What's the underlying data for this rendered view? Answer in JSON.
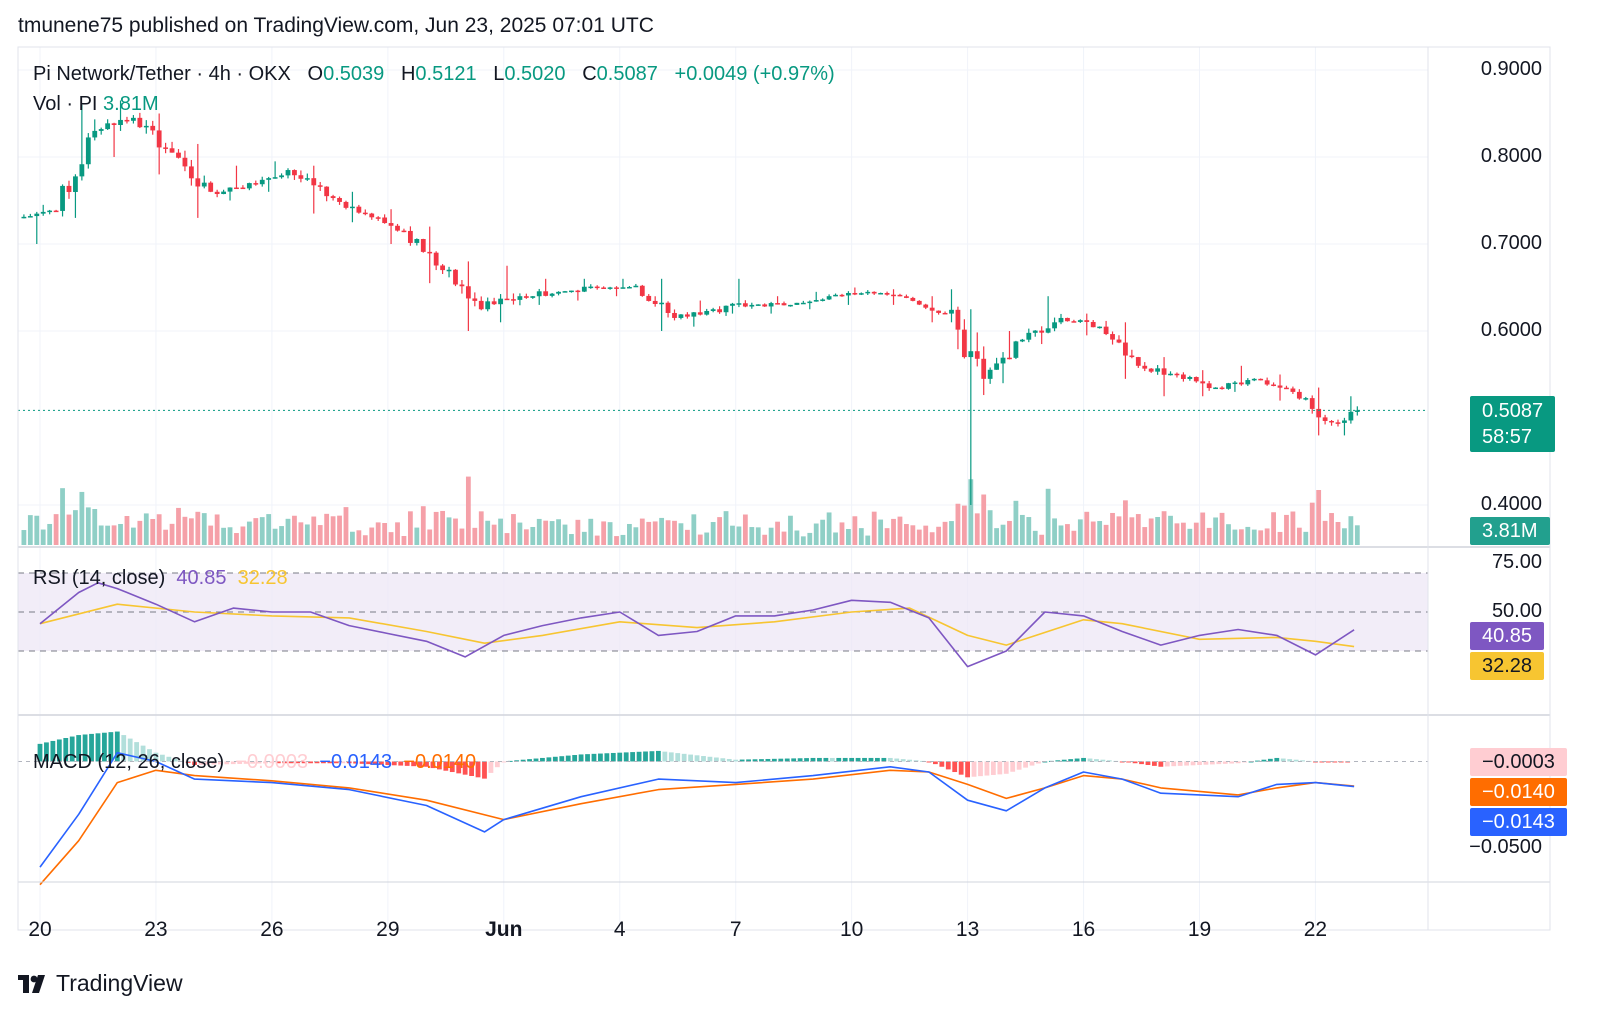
{
  "header": {
    "publisher": "tmunene75 published on TradingView.com, Jun 23, 2025 07:01 UTC",
    "symbol": "Pi Network/Tether · 4h · OKX",
    "open_label": "O",
    "open": "0.5039",
    "high_label": "H",
    "high": "0.5121",
    "low_label": "L",
    "low": "0.5020",
    "close_label": "C",
    "close": "0.5087",
    "change": "+0.0049 (+0.97%)",
    "vol_label": "Vol · PI",
    "vol_value": "3.81M"
  },
  "price_axis": {
    "ticks": [
      {
        "label": "0.9000",
        "value": 0.9
      },
      {
        "label": "0.8000",
        "value": 0.8
      },
      {
        "label": "0.7000",
        "value": 0.7
      },
      {
        "label": "0.6000",
        "value": 0.6
      },
      {
        "label": "0.4000",
        "value": 0.4
      }
    ],
    "last_price": "0.5087",
    "countdown": "58:57",
    "volume_badge": "3.81M"
  },
  "rsi": {
    "label": "RSI (14, close)",
    "value": "40.85",
    "ma_value": "32.28",
    "ticks": [
      {
        "label": "75.00",
        "value": 75
      },
      {
        "label": "50.00",
        "value": 50
      },
      {
        "label": "25.00",
        "value": 25
      }
    ],
    "band_upper": 70,
    "band_mid": 50,
    "band_lower": 30
  },
  "macd": {
    "label": "MACD (12, 26, close)",
    "hist_value": "−0.0003",
    "macd_value": "−0.0143",
    "signal_value": "−0.0140",
    "tick_label": "−0.0500"
  },
  "x_axis": {
    "labels": [
      {
        "text": "20",
        "day": 0
      },
      {
        "text": "23",
        "day": 3
      },
      {
        "text": "26",
        "day": 6
      },
      {
        "text": "29",
        "day": 9
      },
      {
        "text": "Jun",
        "day": 12
      },
      {
        "text": "4",
        "day": 15
      },
      {
        "text": "7",
        "day": 18
      },
      {
        "text": "10",
        "day": 21
      },
      {
        "text": "13",
        "day": 24
      },
      {
        "text": "16",
        "day": 27
      },
      {
        "text": "19",
        "day": 30
      },
      {
        "text": "22",
        "day": 33
      }
    ]
  },
  "footer": {
    "brand": "TradingView",
    "logo_icon": "tradingview-logo-icon"
  },
  "colors": {
    "up": "#089981",
    "down": "#f23645",
    "vol_up": "#8fcfc6",
    "vol_down": "#f5a0a8",
    "rsi": "#7e57c2",
    "rsi_ma": "#f7c531",
    "rsi_band": "#ede7f6",
    "macd": "#2962ff",
    "signal": "#ff6d00",
    "hist_up_strong": "#26a69a",
    "hist_up_weak": "#b2dfdb",
    "hist_down_strong": "#ff5252",
    "hist_down_weak": "#ffcdd2"
  },
  "chart_data": {
    "type": "candlestick",
    "title": "Pi Network/Tether · 4h · OKX",
    "x_unit": "days from May 20, 2025 (4h candles)",
    "ylim": [
      0.36,
      0.92
    ],
    "candles_daily_approx": [
      {
        "day": 0,
        "o": 0.73,
        "h": 0.745,
        "l": 0.7,
        "c": 0.738
      },
      {
        "day": 1,
        "o": 0.738,
        "h": 0.86,
        "l": 0.73,
        "c": 0.83
      },
      {
        "day": 2,
        "o": 0.83,
        "h": 0.865,
        "l": 0.8,
        "c": 0.845
      },
      {
        "day": 3,
        "o": 0.845,
        "h": 0.85,
        "l": 0.78,
        "c": 0.805
      },
      {
        "day": 4,
        "o": 0.805,
        "h": 0.815,
        "l": 0.73,
        "c": 0.76
      },
      {
        "day": 5,
        "o": 0.76,
        "h": 0.79,
        "l": 0.75,
        "c": 0.77
      },
      {
        "day": 6,
        "o": 0.77,
        "h": 0.795,
        "l": 0.76,
        "c": 0.785
      },
      {
        "day": 7,
        "o": 0.785,
        "h": 0.79,
        "l": 0.735,
        "c": 0.755
      },
      {
        "day": 8,
        "o": 0.755,
        "h": 0.76,
        "l": 0.725,
        "c": 0.735
      },
      {
        "day": 9,
        "o": 0.735,
        "h": 0.74,
        "l": 0.7,
        "c": 0.715
      },
      {
        "day": 10,
        "o": 0.715,
        "h": 0.72,
        "l": 0.655,
        "c": 0.67
      },
      {
        "day": 11,
        "o": 0.67,
        "h": 0.68,
        "l": 0.6,
        "c": 0.625
      },
      {
        "day": 12,
        "o": 0.625,
        "h": 0.675,
        "l": 0.61,
        "c": 0.64
      },
      {
        "day": 13,
        "o": 0.64,
        "h": 0.66,
        "l": 0.63,
        "c": 0.645
      },
      {
        "day": 14,
        "o": 0.645,
        "h": 0.66,
        "l": 0.635,
        "c": 0.65
      },
      {
        "day": 15,
        "o": 0.65,
        "h": 0.66,
        "l": 0.64,
        "c": 0.652
      },
      {
        "day": 16,
        "o": 0.652,
        "h": 0.66,
        "l": 0.6,
        "c": 0.615
      },
      {
        "day": 17,
        "o": 0.615,
        "h": 0.635,
        "l": 0.605,
        "c": 0.625
      },
      {
        "day": 18,
        "o": 0.625,
        "h": 0.66,
        "l": 0.62,
        "c": 0.63
      },
      {
        "day": 19,
        "o": 0.63,
        "h": 0.64,
        "l": 0.62,
        "c": 0.63
      },
      {
        "day": 20,
        "o": 0.63,
        "h": 0.645,
        "l": 0.625,
        "c": 0.64
      },
      {
        "day": 21,
        "o": 0.64,
        "h": 0.65,
        "l": 0.63,
        "c": 0.645
      },
      {
        "day": 22,
        "o": 0.645,
        "h": 0.648,
        "l": 0.63,
        "c": 0.638
      },
      {
        "day": 23,
        "o": 0.638,
        "h": 0.64,
        "l": 0.61,
        "c": 0.62
      },
      {
        "day": 24,
        "o": 0.62,
        "h": 0.625,
        "l": 0.4,
        "c": 0.545
      },
      {
        "day": 25,
        "o": 0.545,
        "h": 0.6,
        "l": 0.54,
        "c": 0.59
      },
      {
        "day": 26,
        "o": 0.59,
        "h": 0.64,
        "l": 0.585,
        "c": 0.615
      },
      {
        "day": 27,
        "o": 0.615,
        "h": 0.62,
        "l": 0.595,
        "c": 0.605
      },
      {
        "day": 28,
        "o": 0.605,
        "h": 0.61,
        "l": 0.545,
        "c": 0.56
      },
      {
        "day": 29,
        "o": 0.56,
        "h": 0.57,
        "l": 0.525,
        "c": 0.55
      },
      {
        "day": 30,
        "o": 0.55,
        "h": 0.555,
        "l": 0.525,
        "c": 0.535
      },
      {
        "day": 31,
        "o": 0.535,
        "h": 0.56,
        "l": 0.53,
        "c": 0.545
      },
      {
        "day": 32,
        "o": 0.545,
        "h": 0.55,
        "l": 0.52,
        "c": 0.53
      },
      {
        "day": 33,
        "o": 0.53,
        "h": 0.535,
        "l": 0.48,
        "c": 0.495
      },
      {
        "day": 34,
        "o": 0.495,
        "h": 0.525,
        "l": 0.48,
        "c": 0.5087
      }
    ],
    "volume": {
      "last": "3.81M",
      "peak_days": [
        1,
        11,
        24,
        26,
        33
      ]
    },
    "rsi_points": [
      [
        0,
        44
      ],
      [
        1,
        60
      ],
      [
        1.5,
        65
      ],
      [
        2,
        62
      ],
      [
        3,
        54
      ],
      [
        4,
        45
      ],
      [
        5,
        52
      ],
      [
        6,
        50
      ],
      [
        7,
        50
      ],
      [
        8,
        43
      ],
      [
        9,
        39
      ],
      [
        10,
        35
      ],
      [
        11,
        27
      ],
      [
        12,
        38
      ],
      [
        13,
        43
      ],
      [
        14,
        47
      ],
      [
        15,
        50
      ],
      [
        16,
        38
      ],
      [
        17,
        40
      ],
      [
        18,
        48
      ],
      [
        19,
        48
      ],
      [
        20,
        51
      ],
      [
        21,
        56
      ],
      [
        22,
        55
      ],
      [
        23,
        47
      ],
      [
        24,
        22
      ],
      [
        25,
        30
      ],
      [
        26,
        50
      ],
      [
        27,
        48
      ],
      [
        28,
        40
      ],
      [
        29,
        33
      ],
      [
        30,
        38
      ],
      [
        31,
        41
      ],
      [
        32,
        38
      ],
      [
        33,
        28
      ],
      [
        34,
        40.85
      ]
    ],
    "rsi_ma_points": [
      [
        0,
        44
      ],
      [
        2,
        54
      ],
      [
        4,
        50
      ],
      [
        6,
        48
      ],
      [
        8,
        47
      ],
      [
        10,
        40
      ],
      [
        11.5,
        34
      ],
      [
        13,
        38
      ],
      [
        15,
        45
      ],
      [
        17,
        42
      ],
      [
        19,
        45
      ],
      [
        21,
        50
      ],
      [
        22.5,
        52
      ],
      [
        24,
        38
      ],
      [
        25,
        33
      ],
      [
        27,
        46
      ],
      [
        28,
        44
      ],
      [
        30,
        36
      ],
      [
        32,
        37
      ],
      [
        33,
        35
      ],
      [
        34,
        32.28
      ]
    ],
    "macd_points": [
      [
        0,
        -0.06
      ],
      [
        1,
        -0.03
      ],
      [
        2,
        0.005
      ],
      [
        3,
        0.0
      ],
      [
        4,
        -0.01
      ],
      [
        6,
        -0.012
      ],
      [
        8,
        -0.016
      ],
      [
        10,
        -0.025
      ],
      [
        11.5,
        -0.04
      ],
      [
        12,
        -0.033
      ],
      [
        14,
        -0.02
      ],
      [
        16,
        -0.01
      ],
      [
        18,
        -0.012
      ],
      [
        20,
        -0.008
      ],
      [
        22,
        -0.003
      ],
      [
        23,
        -0.006
      ],
      [
        24,
        -0.022
      ],
      [
        25,
        -0.028
      ],
      [
        26,
        -0.015
      ],
      [
        27,
        -0.006
      ],
      [
        28,
        -0.01
      ],
      [
        29,
        -0.018
      ],
      [
        31,
        -0.02
      ],
      [
        32,
        -0.013
      ],
      [
        33,
        -0.012
      ],
      [
        34,
        -0.0143
      ]
    ],
    "signal_points": [
      [
        0,
        -0.07
      ],
      [
        1,
        -0.045
      ],
      [
        2,
        -0.012
      ],
      [
        3,
        -0.005
      ],
      [
        4,
        -0.008
      ],
      [
        6,
        -0.011
      ],
      [
        8,
        -0.015
      ],
      [
        10,
        -0.022
      ],
      [
        12,
        -0.033
      ],
      [
        14,
        -0.024
      ],
      [
        16,
        -0.016
      ],
      [
        18,
        -0.013
      ],
      [
        20,
        -0.01
      ],
      [
        22,
        -0.005
      ],
      [
        23,
        -0.006
      ],
      [
        24,
        -0.013
      ],
      [
        25,
        -0.021
      ],
      [
        26,
        -0.015
      ],
      [
        27,
        -0.008
      ],
      [
        28,
        -0.01
      ],
      [
        29,
        -0.015
      ],
      [
        31,
        -0.019
      ],
      [
        32,
        -0.015
      ],
      [
        33,
        -0.012
      ],
      [
        34,
        -0.014
      ]
    ]
  }
}
